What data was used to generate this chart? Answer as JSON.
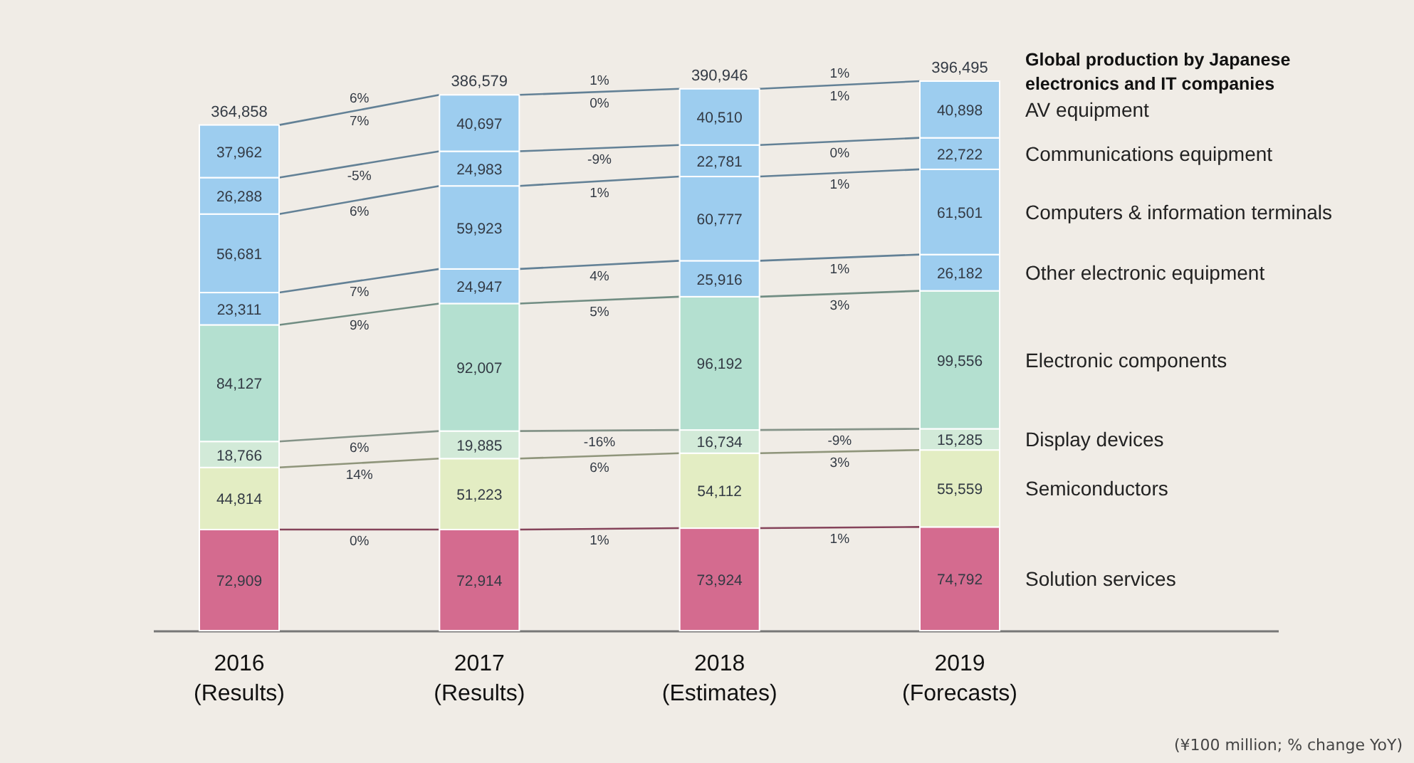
{
  "chart_data": {
    "type": "bar",
    "stacked": true,
    "title": "Global production by Japanese electronics and IT companies",
    "categories": [
      "2016 (Results)",
      "2017 (Results)",
      "2018 (Estimates)",
      "2019 (Forecasts)"
    ],
    "series": [
      {
        "name": "Solution services",
        "color": "#d46b8f",
        "values": [
          72909,
          72914,
          73924,
          74792
        ],
        "value_labels": [
          "72,909",
          "72,914",
          "73,924",
          "74,792"
        ]
      },
      {
        "name": "Semiconductors",
        "color": "#e3edc3",
        "values": [
          44814,
          51223,
          54112,
          55559
        ],
        "value_labels": [
          "44,814",
          "51,223",
          "54,112",
          "55,559"
        ]
      },
      {
        "name": "Display devices",
        "color": "#d2ead8",
        "values": [
          18766,
          19885,
          16734,
          15285
        ],
        "value_labels": [
          "18,766",
          "19,885",
          "16,734",
          "15,285"
        ]
      },
      {
        "name": "Electronic components",
        "color": "#b4e0d0",
        "values": [
          84127,
          92007,
          96192,
          99556
        ],
        "value_labels": [
          "84,127",
          "92,007",
          "96,192",
          "99,556"
        ]
      },
      {
        "name": "Other electronic equipment",
        "color": "#9dcdef",
        "values": [
          23311,
          24947,
          25916,
          26182
        ],
        "value_labels": [
          "23,311",
          "24,947",
          "25,916",
          "26,182"
        ]
      },
      {
        "name": "Computers & information terminals",
        "color": "#9dcdef",
        "values": [
          56681,
          59923,
          60777,
          61501
        ],
        "value_labels": [
          "56,681",
          "59,923",
          "60,777",
          "61,501"
        ]
      },
      {
        "name": "Communications equipment",
        "color": "#9dcdef",
        "values": [
          26288,
          24983,
          22781,
          22722
        ],
        "value_labels": [
          "26,288",
          "24,983",
          "22,781",
          "22,722"
        ]
      },
      {
        "name": "AV equipment",
        "color": "#9dcdef",
        "values": [
          37962,
          40697,
          40510,
          40898
        ],
        "value_labels": [
          "37,962",
          "40,697",
          "40,510",
          "40,898"
        ]
      }
    ],
    "totals": [
      "364,858",
      "386,579",
      "390,946",
      "396,495"
    ],
    "legend": "right",
    "annotations": [
      "0%",
      "14%",
      "6%",
      "9%",
      "7%",
      "6%",
      "-5%",
      "7%",
      "6%",
      "1%",
      "6%",
      "-16%",
      "5%",
      "4%",
      "1%",
      "-9%",
      "0%",
      "1%",
      "1%",
      "3%",
      "-9%",
      "3%",
      "1%",
      "1%",
      "0%",
      "1%",
      "1%",
      "(¥100 million; % change YoY)"
    ]
  }
}
